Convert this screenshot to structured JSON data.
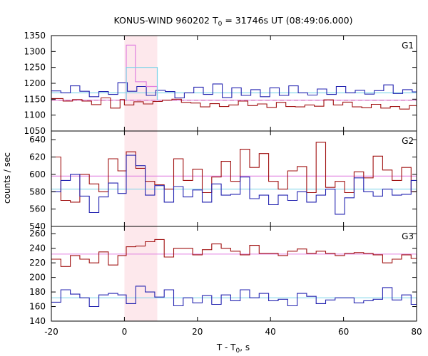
{
  "chart_data": {
    "type": "line",
    "title": {
      "prefix": "KONUS-WIND 960202 T",
      "subscript": "0",
      "suffix": " = 31746s UT (08:49:06.000)"
    },
    "xlabel": {
      "prefix": "T - T",
      "subscript": "0",
      "suffix": ", s"
    },
    "ylabel": "counts / sec",
    "xlim": [
      -20,
      80
    ],
    "x_ticks": [
      -20,
      0,
      20,
      40,
      60,
      80
    ],
    "highlight_interval": [
      0,
      9
    ],
    "colors": {
      "red": "#a01010",
      "blue": "#2323b0",
      "cyan": "#7ad3e8",
      "pink": "#e080e0",
      "band": "#fde8ec"
    },
    "panels": [
      {
        "label": "G1",
        "ylim": [
          1050,
          1350
        ],
        "y_ticks": [
          1050,
          1100,
          1150,
          1200,
          1250,
          1300,
          1350
        ],
        "red_series": {
          "edges": [
            -20,
            -16.8,
            -14.2,
            -11.6,
            -9,
            -6.4,
            -3.8,
            -1.2,
            0,
            2.6,
            5.2,
            7.8,
            10.4,
            13,
            15.6,
            18.2,
            20.8,
            23.4,
            26,
            28.6,
            31.2,
            33.8,
            36.4,
            39,
            41.6,
            44.2,
            46.8,
            49.4,
            52,
            54.6,
            57.2,
            59.8,
            62.4,
            65,
            67.6,
            70.2,
            72.8,
            75.4,
            78,
            80
          ],
          "values": [
            1152,
            1144,
            1149,
            1144,
            1133,
            1154,
            1122,
            1149,
            1132,
            1142,
            1135,
            1143,
            1147,
            1150,
            1140,
            1138,
            1126,
            1136,
            1127,
            1132,
            1144,
            1130,
            1135,
            1124,
            1140,
            1127,
            1126,
            1132,
            1128,
            1148,
            1132,
            1141,
            1126,
            1123,
            1134,
            1122,
            1127,
            1119,
            1130,
            1126
          ]
        },
        "blue_series": {
          "edges": [
            -20,
            -17.4,
            -14.8,
            -12.2,
            -9.6,
            -7,
            -4.4,
            -1.8,
            0.8,
            3.4,
            6,
            8.6,
            11.2,
            13.8,
            16.4,
            19,
            21.6,
            24.2,
            26.8,
            29.4,
            32,
            34.6,
            37.2,
            39.8,
            42.4,
            45,
            47.6,
            50.2,
            52.8,
            55.4,
            58,
            60.6,
            63.2,
            65.8,
            68.4,
            71,
            73.6,
            76.2,
            78.8,
            80
          ],
          "values": [
            1176,
            1170,
            1192,
            1175,
            1158,
            1174,
            1165,
            1202,
            1175,
            1190,
            1162,
            1178,
            1174,
            1154,
            1170,
            1188,
            1165,
            1198,
            1155,
            1186,
            1162,
            1180,
            1158,
            1186,
            1162,
            1192,
            1170,
            1163,
            1182,
            1165,
            1190,
            1170,
            1178,
            1166,
            1177,
            1195,
            1168,
            1180,
            1173,
            1180
          ]
        },
        "step_overlays": [
          {
            "color": "pink",
            "edges": [
              0.5,
              3,
              6,
              9
            ],
            "values": [
              1320,
              1205,
              1190
            ]
          },
          {
            "color": "cyan",
            "edges": [
              0.5,
              3.5,
              9
            ],
            "values": [
              1250,
              1250
            ]
          }
        ],
        "hlines": [
          {
            "color": "cyan",
            "style": "solid",
            "value": 1170
          },
          {
            "color": "red",
            "style": "dashed",
            "value": 1147
          },
          {
            "color": "pink",
            "style": "solid",
            "value": 1147
          }
        ]
      },
      {
        "label": "G2",
        "ylim": [
          540,
          650
        ],
        "y_ticks": [
          540,
          560,
          580,
          600,
          620,
          640
        ],
        "red_series": {
          "edges": [
            -20,
            -17.4,
            -14.8,
            -12.2,
            -9.6,
            -7,
            -4.4,
            -1.8,
            0.5,
            3.1,
            5.7,
            8.3,
            10.9,
            13.5,
            16.1,
            18.7,
            21.3,
            23.9,
            26.5,
            29.1,
            31.7,
            34.3,
            36.9,
            39.5,
            42.1,
            44.7,
            47.3,
            49.9,
            52.5,
            55.1,
            57.7,
            60.3,
            62.9,
            65.5,
            68.1,
            70.7,
            73.3,
            75.9,
            78.5,
            80
          ],
          "values": [
            620,
            570,
            568,
            600,
            589,
            580,
            618,
            604,
            626,
            607,
            592,
            588,
            583,
            618,
            593,
            606,
            579,
            597,
            615,
            592,
            629,
            608,
            624,
            592,
            583,
            604,
            609,
            579,
            637,
            585,
            592,
            579,
            603,
            596,
            621,
            605,
            593,
            608,
            580,
            582
          ]
        },
        "blue_series": {
          "edges": [
            -20,
            -17.4,
            -14.8,
            -12.2,
            -9.6,
            -7,
            -4.4,
            -1.8,
            0.5,
            3.1,
            5.7,
            8.3,
            10.9,
            13.5,
            16.1,
            18.7,
            21.3,
            23.9,
            26.5,
            29.1,
            31.7,
            34.3,
            36.9,
            39.5,
            42.1,
            44.7,
            47.3,
            49.9,
            52.5,
            55.1,
            57.7,
            60.3,
            62.9,
            65.5,
            68.1,
            70.7,
            73.3,
            75.9,
            78.5,
            80
          ],
          "values": [
            580,
            593,
            600,
            575,
            556,
            574,
            590,
            578,
            622,
            610,
            576,
            587,
            568,
            586,
            574,
            582,
            568,
            589,
            576,
            577,
            597,
            572,
            576,
            565,
            576,
            570,
            580,
            568,
            576,
            583,
            554,
            573,
            596,
            580,
            575,
            583,
            576,
            577,
            593,
            590
          ]
        },
        "step_overlays": [],
        "hlines": [
          {
            "color": "pink",
            "style": "solid",
            "value": 598
          },
          {
            "color": "cyan",
            "style": "solid",
            "value": 583
          }
        ]
      },
      {
        "label": "G3",
        "ylim": [
          140,
          270
        ],
        "y_ticks": [
          140,
          160,
          180,
          200,
          220,
          240,
          260
        ],
        "red_series": {
          "edges": [
            -20,
            -17.4,
            -14.8,
            -12.2,
            -9.6,
            -7,
            -4.4,
            -1.8,
            0.5,
            3.1,
            5.7,
            8.3,
            10.9,
            13.5,
            16.1,
            18.7,
            21.3,
            23.9,
            26.5,
            29.1,
            31.7,
            34.3,
            36.9,
            39.5,
            42.1,
            44.7,
            47.3,
            49.9,
            52.5,
            55.1,
            57.7,
            60.3,
            62.9,
            65.5,
            68.1,
            70.7,
            73.3,
            75.9,
            78.5,
            80
          ],
          "values": [
            225,
            215,
            230,
            225,
            220,
            235,
            217,
            230,
            242,
            243,
            249,
            252,
            228,
            240,
            240,
            231,
            238,
            246,
            240,
            236,
            231,
            244,
            233,
            233,
            230,
            236,
            239,
            233,
            236,
            233,
            230,
            233,
            234,
            233,
            231,
            220,
            225,
            231,
            226,
            232
          ]
        },
        "blue_series": {
          "edges": [
            -20,
            -17.4,
            -14.8,
            -12.2,
            -9.6,
            -7,
            -4.4,
            -1.8,
            0.5,
            3.1,
            5.7,
            8.3,
            10.9,
            13.5,
            16.1,
            18.7,
            21.3,
            23.9,
            26.5,
            29.1,
            31.7,
            34.3,
            36.9,
            39.5,
            42.1,
            44.7,
            47.3,
            49.9,
            52.5,
            55.1,
            57.7,
            60.3,
            62.9,
            65.5,
            68.1,
            70.7,
            73.3,
            75.9,
            78.5,
            80
          ],
          "values": [
            166,
            183,
            177,
            172,
            160,
            176,
            178,
            176,
            164,
            188,
            180,
            173,
            183,
            161,
            172,
            165,
            175,
            163,
            176,
            168,
            183,
            172,
            178,
            168,
            170,
            161,
            178,
            174,
            164,
            169,
            172,
            172,
            165,
            168,
            170,
            186,
            169,
            176,
            163,
            172
          ]
        },
        "step_overlays": [],
        "hlines": [
          {
            "color": "pink",
            "style": "solid",
            "value": 232
          },
          {
            "color": "cyan",
            "style": "solid",
            "value": 172
          }
        ]
      }
    ]
  }
}
